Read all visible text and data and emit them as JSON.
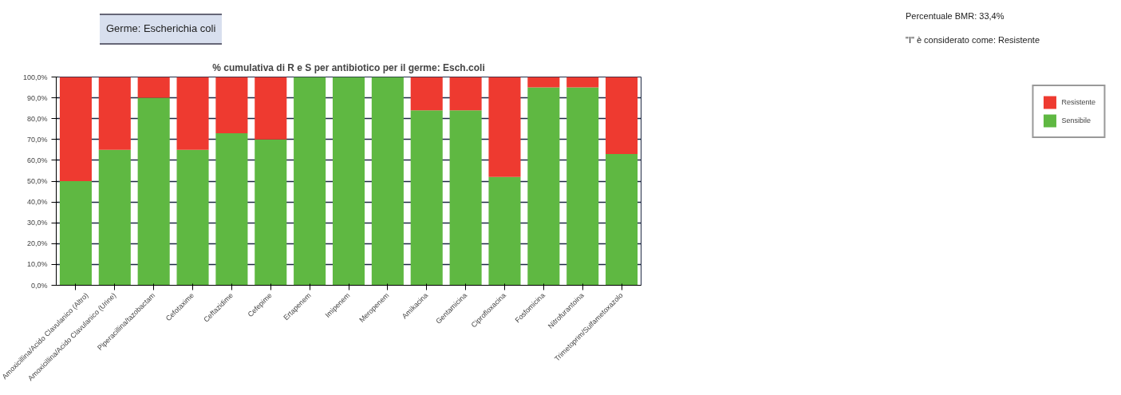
{
  "chart_data": {
    "type": "bar",
    "stacked": true,
    "title": "% cumulativa di R e S per antibiotico per il germe: Esch.coli",
    "annotations": [
      "Germe: Escherichia coli",
      "Percentuale BMR: 33,4%",
      "\"I\" è considerato come: Resistente"
    ],
    "categories": [
      "Amoxicillina/Acido Clavulanico (Altro)",
      "Amoxicillina/Acido Clavulanico (Urine)",
      "Piperacillina/tazobactam",
      "Cefotaxime",
      "Ceftazidime",
      "Cefepime",
      "Ertapenem",
      "Imipenem",
      "Meropenem",
      "Amikacina",
      "Gentamicina",
      "Ciprofloxacina",
      "Fosfomicina",
      "Nitrofurantoina",
      "Trimetoprim/Sulfametoxazolo"
    ],
    "series": [
      {
        "name": "Sensibile",
        "color": "#5fb842",
        "values": [
          50,
          65,
          90,
          65,
          73,
          70,
          100,
          100,
          100,
          84,
          84,
          52,
          95,
          95,
          63
        ]
      },
      {
        "name": "Resistente",
        "color": "#ee3a30",
        "values": [
          50,
          35,
          10,
          35,
          27,
          30,
          0,
          0,
          0,
          16,
          16,
          48,
          5,
          5,
          37
        ]
      }
    ],
    "ylim": [
      0,
      100
    ],
    "yticks": [
      {
        "value": 0,
        "label": "0,0%"
      },
      {
        "value": 10,
        "label": "10,0%"
      },
      {
        "value": 20,
        "label": "20,0%"
      },
      {
        "value": 30,
        "label": "30,0%"
      },
      {
        "value": 40,
        "label": "40,0%"
      },
      {
        "value": 50,
        "label": "50,0%"
      },
      {
        "value": 60,
        "label": "60,0%"
      },
      {
        "value": 70,
        "label": "70,0%"
      },
      {
        "value": 80,
        "label": "80,0%"
      },
      {
        "value": 90,
        "label": "90,0%"
      },
      {
        "value": 100,
        "label": "100,0%"
      }
    ],
    "grid": "y",
    "legend": "right"
  }
}
